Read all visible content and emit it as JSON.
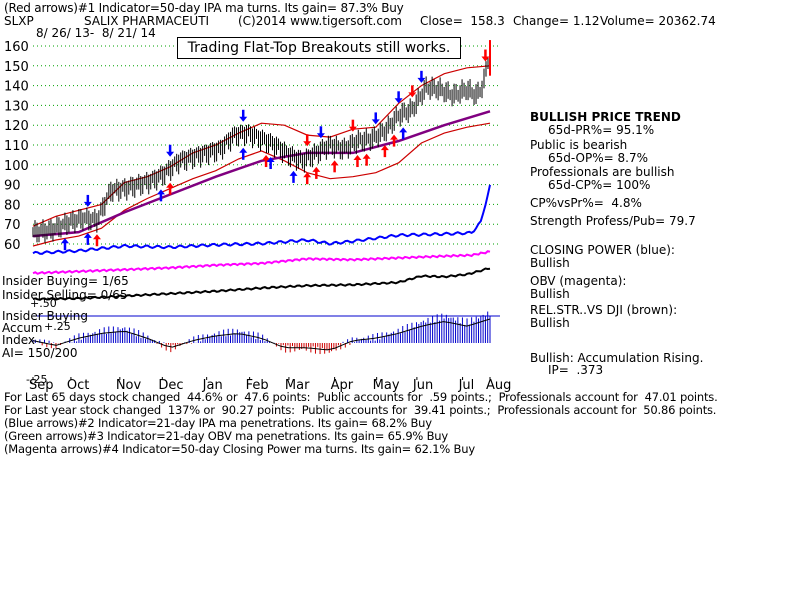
{
  "header": {
    "line1": "(Red arrows)#1 Indicator=50-day IPA ma turns. Its gain= 87.3% Buy",
    "symbol": "SLXP",
    "company": "SALIX PHARMACEUTI",
    "copyright": "(C)2014 www.tigersoft.com",
    "close": "Close=  158.3",
    "change": "Change= 1.12",
    "volume": "Volume= 20362.74",
    "daterange": "8/ 26/ 13-  8/ 21/ 14"
  },
  "banner": "Trading Flat-Top Breakouts still works.",
  "sidepanel": {
    "trend": "BULLISH PRICE TREND",
    "pr": "65d-PR%= 95.1%",
    "public_bearish": "Public is bearish",
    "op": "65d-OP%= 8.7%",
    "pros_bullish": "Professionals are bullish",
    "cp": "65d-CP%= 100%",
    "cpvspr": "CP%vsPr%=  4.8%",
    "strength": "Strength Profess/Pub= 79.7",
    "closing_power": "CLOSING POWER (blue):",
    "closing_power_state": "Bullish",
    "obv": "OBV (magenta):",
    "obv_state": "Bullish",
    "relstr": "REL.STR..VS DJI (brown):",
    "relstr_state": "Bullish",
    "accum": "Bullish: Accumulation Rising.",
    "ip": "IP=  .373"
  },
  "left_labels": {
    "insider_buying": "Insider Buying= 1/65",
    "insider_selling": "Insider Selling= 0/65",
    "insider_buying2": "Insider Buying",
    "accum": "Accum",
    "plus25": "+.25",
    "plus50": "+.50",
    "index": "Index",
    "ai": "AI= 150/200",
    "minus25": "-.25"
  },
  "footer": {
    "line1": "For Last 65 days stock changed  44.6% or  47.6 points:  Public accounts for  .59 points.;  Professionals account for  47.01 points.",
    "line2": "For Last year stock changed  137% or  90.27 points:  Public accounts for  39.41 points.;  Professionals account for  50.86 points.",
    "line3": "(Blue arrows)#2 Indicator=21-day IPA ma penetrations. Its gain= 68.2% Buy",
    "line4": "(Green arrows)#3 Indicator=21-day OBV ma penetrations. Its gain= 65.9% Buy",
    "line5": "(Magenta arrows)#4 Indicator=50-day Closing Power ma turns. Its gain= 62.1% Buy"
  },
  "colors": {
    "price": "#000000",
    "band": "#cc0000",
    "ma50": "#800080",
    "closing_power": "#0000ff",
    "obv": "#ff00ff",
    "relstr": "#000000",
    "accum_pos": "#0000cc",
    "accum_neg": "#cc0000",
    "gridline": "#00a000",
    "red_arrow": "#ff0000",
    "blue_arrow": "#0000ff"
  },
  "chart_data": {
    "type": "line",
    "title": "",
    "ylabel": "",
    "xlabel": "",
    "y_ticks": [
      160,
      150,
      140,
      130,
      120,
      110,
      100,
      90,
      80,
      70,
      60
    ],
    "ylim": [
      55,
      165
    ],
    "x_ticks": [
      "Sep",
      "Oct",
      "Nov",
      "Dec",
      "Jan",
      "Feb",
      "Mar",
      "Apr",
      "May",
      "Jun",
      "Jul",
      "Aug"
    ],
    "x_tick_t": [
      0,
      0.083,
      0.19,
      0.283,
      0.38,
      0.474,
      0.56,
      0.66,
      0.752,
      0.84,
      0.94,
      1.0
    ],
    "price": {
      "t": [
        0,
        0.04,
        0.08,
        0.11,
        0.14,
        0.17,
        0.2,
        0.23,
        0.26,
        0.29,
        0.32,
        0.35,
        0.38,
        0.41,
        0.44,
        0.47,
        0.5,
        0.53,
        0.56,
        0.59,
        0.62,
        0.65,
        0.68,
        0.71,
        0.74,
        0.77,
        0.8,
        0.83,
        0.86,
        0.89,
        0.92,
        0.95,
        0.97,
        0.985,
        1.0
      ],
      "values": [
        66,
        67,
        71,
        73,
        72,
        87,
        88,
        90,
        92,
        96,
        102,
        104,
        106,
        108,
        115,
        116,
        113,
        110,
        105,
        102,
        106,
        110,
        108,
        112,
        113,
        117,
        125,
        128,
        139,
        138,
        135,
        138,
        135,
        140,
        158.3
      ]
    },
    "upper_band": {
      "t": [
        0,
        0.05,
        0.1,
        0.15,
        0.2,
        0.25,
        0.3,
        0.35,
        0.4,
        0.45,
        0.5,
        0.55,
        0.6,
        0.65,
        0.7,
        0.75,
        0.8,
        0.85,
        0.9,
        0.95,
        1.0
      ],
      "values": [
        69,
        74,
        77,
        80,
        91,
        94,
        99,
        106,
        110,
        116,
        121,
        120,
        115,
        114,
        118,
        119,
        131,
        140,
        146,
        149,
        150
      ]
    },
    "lower_band": {
      "t": [
        0,
        0.05,
        0.1,
        0.15,
        0.2,
        0.25,
        0.3,
        0.35,
        0.4,
        0.45,
        0.5,
        0.55,
        0.6,
        0.65,
        0.7,
        0.75,
        0.8,
        0.85,
        0.9,
        0.95,
        1.0
      ],
      "values": [
        59,
        62,
        64,
        68,
        77,
        83,
        88,
        93,
        97,
        103,
        107,
        102,
        96,
        93,
        94,
        96,
        101,
        111,
        116,
        119,
        121
      ]
    },
    "ma50": {
      "t": [
        0,
        0.1,
        0.2,
        0.3,
        0.4,
        0.5,
        0.6,
        0.7,
        0.8,
        0.9,
        1.0
      ],
      "values": [
        64,
        66,
        76,
        85,
        94,
        102,
        106,
        106,
        112,
        120,
        127
      ]
    },
    "closing_power": {
      "t": [
        0,
        0.1,
        0.2,
        0.3,
        0.4,
        0.5,
        0.6,
        0.65,
        0.7,
        0.8,
        0.9,
        0.96,
        0.98,
        1.0
      ],
      "values": [
        0.2,
        0.3,
        0.5,
        0.45,
        0.55,
        0.6,
        0.75,
        0.6,
        0.7,
        0.95,
        1.0,
        1.05,
        1.5,
        3.0
      ]
    },
    "obv": {
      "t": [
        0,
        0.1,
        0.2,
        0.3,
        0.4,
        0.5,
        0.6,
        0.7,
        0.8,
        0.9,
        0.96,
        1.0
      ],
      "values": [
        0.1,
        0.2,
        0.3,
        0.4,
        0.55,
        0.65,
        0.9,
        0.85,
        0.95,
        1.05,
        1.1,
        1.3
      ]
    },
    "relstr": {
      "t": [
        0,
        0.1,
        0.2,
        0.3,
        0.4,
        0.5,
        0.6,
        0.7,
        0.8,
        0.85,
        0.9,
        0.95,
        1.0
      ],
      "values": [
        0.05,
        0.1,
        0.25,
        0.4,
        0.55,
        0.75,
        0.9,
        0.95,
        1.1,
        1.5,
        1.45,
        1.6,
        2.0
      ]
    },
    "accum_index": {
      "t": [
        0,
        0.05,
        0.1,
        0.15,
        0.2,
        0.25,
        0.3,
        0.35,
        0.4,
        0.45,
        0.5,
        0.55,
        0.6,
        0.65,
        0.7,
        0.75,
        0.8,
        0.85,
        0.9,
        0.95,
        1.0
      ],
      "values": [
        0.05,
        -0.05,
        0.1,
        0.2,
        0.25,
        0.1,
        -0.1,
        0.05,
        0.15,
        0.2,
        0.1,
        -0.1,
        -0.1,
        -0.15,
        0.05,
        0.1,
        0.2,
        0.35,
        0.45,
        0.35,
        0.5
      ]
    },
    "red_arrows_up": [
      0.14,
      0.3,
      0.51,
      0.6,
      0.62,
      0.66,
      0.71,
      0.73,
      0.77,
      0.79
    ],
    "red_arrows_down": [
      0.6,
      0.7,
      0.83,
      0.99
    ],
    "blue_arrows_up": [
      0.07,
      0.12,
      0.28,
      0.46,
      0.52,
      0.57,
      0.81
    ],
    "blue_arrows_down": [
      0.12,
      0.3,
      0.46,
      0.63,
      0.75,
      0.8,
      0.85
    ]
  }
}
